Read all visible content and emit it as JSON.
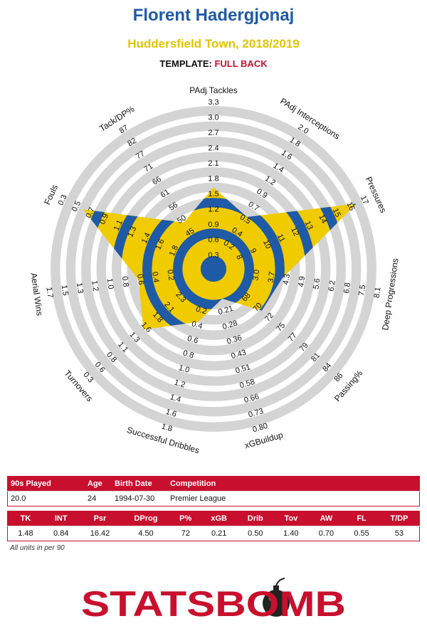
{
  "header": {
    "player_name": "Florent Hadergjonaj",
    "team_season": "Huddersfield Town, 2018/2019",
    "template_label": "TEMPLATE:",
    "template_value": "FULL BACK"
  },
  "colors": {
    "title_blue": "#1f5aa6",
    "subtitle_yellow": "#e3c400",
    "accent_red": "#c8102e",
    "ring_gray": "#d4d4d4",
    "ring_blue": "#1f5aa6",
    "ring_yellow": "#f0cb00"
  },
  "chart_data": {
    "type": "radar",
    "axes": [
      {
        "label": "PAdj Tackles",
        "ticks": [
          "0.3",
          "0.6",
          "0.9",
          "1.2",
          "1.5",
          "1.8",
          "2.1",
          "2.4",
          "2.7",
          "3.0",
          "3.3"
        ],
        "min": 0.0,
        "max": 3.3,
        "value": 1.48
      },
      {
        "label": "PAdj Interceptions",
        "ticks": [
          "0.2",
          "0.4",
          "0.5",
          "0.7",
          "0.9",
          "1.2",
          "1.4",
          "1.6",
          "1.8",
          "2.0"
        ],
        "min": 0.2,
        "max": 2.2,
        "value": 0.84
      },
      {
        "label": "Pressures",
        "ticks": [
          "8",
          "9",
          "10",
          "11",
          "12",
          "13",
          "14",
          "15",
          "16",
          "17"
        ],
        "min": 7,
        "max": 17,
        "value": 16.42
      },
      {
        "label": "Deep Progressions",
        "ticks": [
          "3.0",
          "3.7",
          "4.3",
          "4.9",
          "5.6",
          "6.2",
          "6.8",
          "7.5",
          "8.1"
        ],
        "min": 2.4,
        "max": 8.1,
        "value": 4.5
      },
      {
        "label": "Passing%",
        "ticks": [
          "68",
          "70",
          "72",
          "75",
          "77",
          "79",
          "81",
          "84",
          "86"
        ],
        "min": 65,
        "max": 86,
        "value": 72
      },
      {
        "label": "xGBuildup",
        "ticks": [
          "0.21",
          "0.28",
          "0.36",
          "0.43",
          "0.51",
          "0.58",
          "0.66",
          "0.73",
          "0.80"
        ],
        "min": 0.13,
        "max": 0.8,
        "value": 0.21
      },
      {
        "label": "Successful Dribbles",
        "ticks": [
          "0.2",
          "0.4",
          "0.6",
          "0.8",
          "1.0",
          "1.2",
          "1.4",
          "1.6",
          "1.8"
        ],
        "min": 0.0,
        "max": 1.8,
        "value": 0.5
      },
      {
        "label": "Turnovers",
        "ticks": [
          "2.3",
          "2.1",
          "1.8",
          "1.6",
          "1.3",
          "1.1",
          "0.8",
          "0.6",
          "0.3"
        ],
        "min": 2.6,
        "max": 0.3,
        "value": 1.4
      },
      {
        "label": "Aerial Wins",
        "ticks": [
          "0.2",
          "0.4",
          "0.6",
          "0.8",
          "1.0",
          "1.2",
          "1.3",
          "1.5",
          "1.7"
        ],
        "min": 0.0,
        "max": 1.7,
        "value": 0.7
      },
      {
        "label": "Fouls",
        "ticks": [
          "1.8",
          "1.6",
          "1.4",
          "1.3",
          "1.1",
          "0.9",
          "0.7",
          "0.5",
          "0.3"
        ],
        "min": 2.0,
        "max": 0.3,
        "value": 0.55
      },
      {
        "label": "Tack/DP%",
        "ticks": [
          "45",
          "50",
          "56",
          "61",
          "66",
          "71",
          "77",
          "82",
          "87"
        ],
        "min": 40,
        "max": 87,
        "value": 53
      }
    ]
  },
  "table1": {
    "headers": [
      "90s Played",
      "Age",
      "Birth Date",
      "Competition"
    ],
    "values": [
      "20.0",
      "24",
      "1994-07-30",
      "Premier League"
    ]
  },
  "table2": {
    "headers": [
      "TK",
      "INT",
      "Psr",
      "DProg",
      "P%",
      "xGB",
      "Drib",
      "Tov",
      "AW",
      "FL",
      "T/DP"
    ],
    "values": [
      "1.48",
      "0.84",
      "16.42",
      "4.50",
      "72",
      "0.21",
      "0.50",
      "1.40",
      "0.70",
      "0.55",
      "53"
    ]
  },
  "footer": {
    "units_note": "All units in per 90",
    "logo_text": "STATSBOMB"
  }
}
